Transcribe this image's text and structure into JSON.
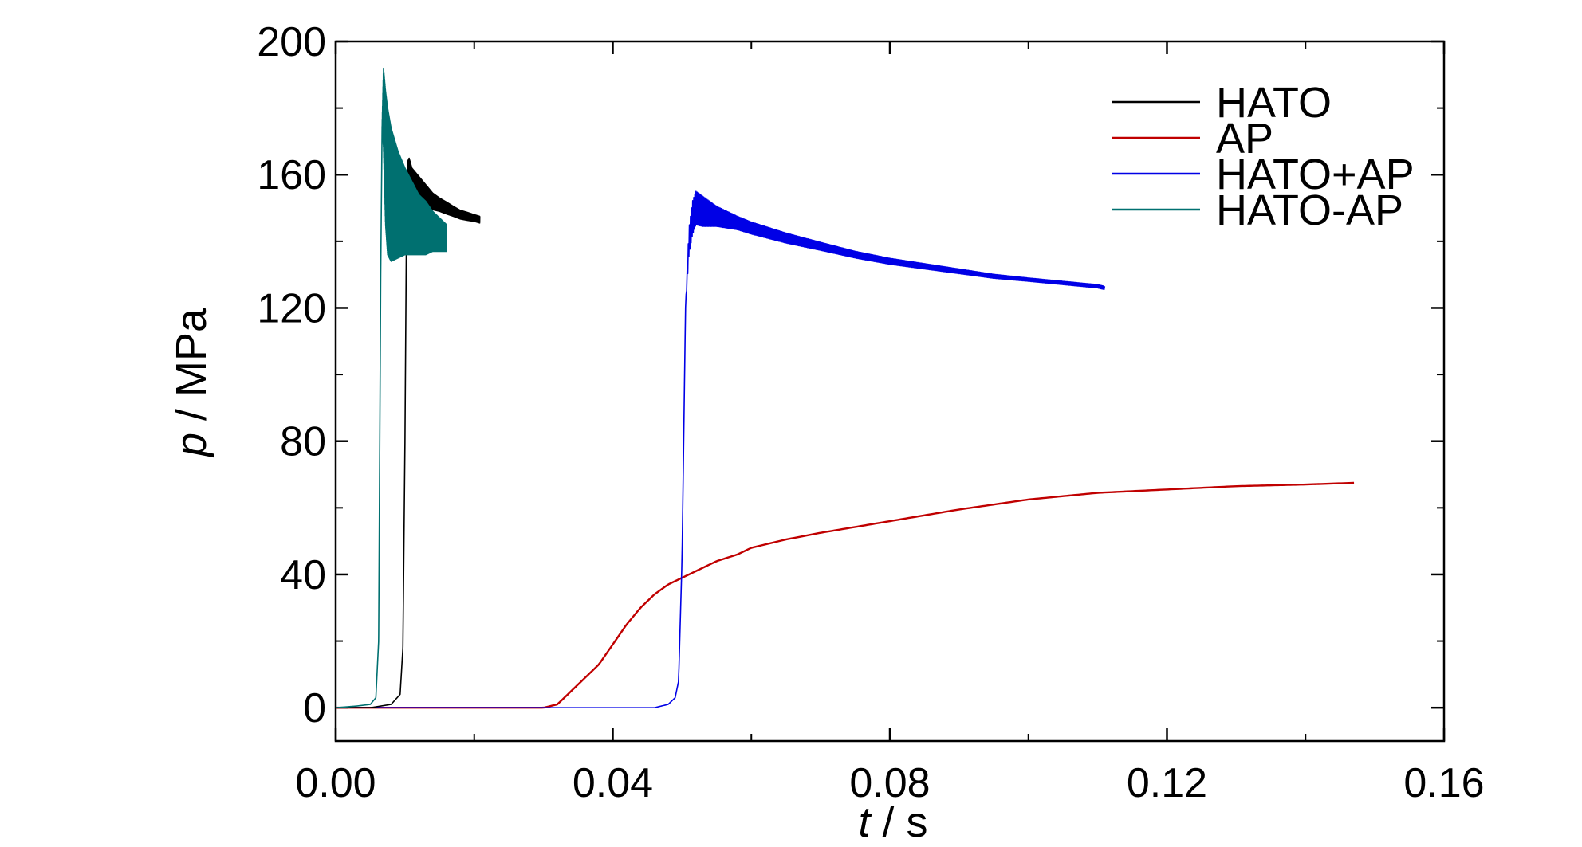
{
  "chart_data": {
    "type": "line",
    "xlabel_var": "t",
    "xlabel_unit": " / s",
    "ylabel_var": "p",
    "ylabel_unit": " / MPa",
    "xlim": [
      0,
      0.16
    ],
    "ylim": [
      -10,
      200
    ],
    "x_ticks": [
      0.0,
      0.04,
      0.08,
      0.12,
      0.16
    ],
    "x_tick_labels": [
      "0.00",
      "0.04",
      "0.08",
      "0.12",
      "0.16"
    ],
    "y_ticks": [
      0,
      40,
      80,
      120,
      160,
      200
    ],
    "y_tick_labels": [
      "0",
      "40",
      "80",
      "120",
      "160",
      "200"
    ],
    "grid": false,
    "legend_position": "top-right",
    "series": [
      {
        "name": "HATO",
        "color": "#000000",
        "x": [
          0.0,
          0.005,
          0.008,
          0.0093,
          0.0097,
          0.01,
          0.0102,
          0.0104,
          0.0106,
          0.011,
          0.012,
          0.013,
          0.014,
          0.015,
          0.016,
          0.017,
          0.018,
          0.019,
          0.02,
          0.0208
        ],
        "y": [
          0,
          0,
          1,
          4,
          18,
          80,
          140,
          158,
          160,
          158,
          156,
          154,
          152,
          151,
          150,
          149,
          148,
          147.5,
          147,
          146.5
        ],
        "amplitude": [
          0,
          0,
          0,
          0,
          0,
          0,
          0,
          6,
          5,
          4,
          3.5,
          3,
          2.5,
          2,
          1.8,
          1.5,
          1.3,
          1.2,
          1,
          1
        ]
      },
      {
        "name": "AP",
        "color": "#c00000",
        "x": [
          0.0,
          0.03,
          0.032,
          0.034,
          0.036,
          0.038,
          0.04,
          0.042,
          0.044,
          0.046,
          0.048,
          0.05,
          0.052,
          0.055,
          0.058,
          0.06,
          0.065,
          0.07,
          0.08,
          0.09,
          0.1,
          0.11,
          0.12,
          0.13,
          0.14,
          0.147
        ],
        "y": [
          0,
          0,
          1,
          5,
          9,
          13,
          19,
          25,
          30,
          34,
          37,
          39,
          41,
          44,
          46,
          48,
          50.5,
          52.5,
          56,
          59.5,
          62.5,
          64.5,
          65.5,
          66.5,
          67,
          67.5
        ],
        "amplitude": []
      },
      {
        "name": "HATO+AP",
        "color": "#0000e6",
        "x": [
          0.0,
          0.04,
          0.046,
          0.048,
          0.049,
          0.0495,
          0.05,
          0.0505,
          0.051,
          0.0515,
          0.052,
          0.053,
          0.055,
          0.058,
          0.06,
          0.065,
          0.07,
          0.075,
          0.08,
          0.085,
          0.09,
          0.095,
          0.1,
          0.105,
          0.11,
          0.111
        ],
        "y": [
          0,
          0,
          0,
          1,
          3,
          8,
          45,
          120,
          140,
          147,
          150,
          149,
          147.5,
          145.5,
          144,
          141,
          138.5,
          136,
          134,
          132.5,
          131,
          129.5,
          128.5,
          127.5,
          126.5,
          126
        ],
        "amplitude": [
          0,
          0,
          0,
          0,
          0,
          0,
          0,
          0,
          4,
          5,
          5,
          4.5,
          3,
          2,
          1.8,
          1.5,
          1.2,
          1,
          0.9,
          0.8,
          0.7,
          0.6,
          0.5,
          0.5,
          0.5,
          0.5
        ]
      },
      {
        "name": "HATO-AP",
        "color": "#007070",
        "x": [
          0.0,
          0.003,
          0.005,
          0.0058,
          0.0062,
          0.0065,
          0.0067,
          0.0069,
          0.0072,
          0.0075,
          0.008,
          0.009,
          0.01,
          0.011,
          0.012,
          0.013,
          0.014,
          0.015,
          0.016
        ],
        "y": [
          0,
          0.5,
          1,
          3,
          20,
          130,
          175,
          180,
          165,
          158,
          154,
          151,
          149,
          147,
          145,
          144,
          143,
          142,
          141
        ],
        "amplitude": [
          0,
          0,
          0,
          0,
          0,
          0,
          0,
          12,
          20,
          22,
          20,
          16,
          13,
          11,
          9,
          8,
          6,
          5,
          4
        ]
      }
    ]
  }
}
